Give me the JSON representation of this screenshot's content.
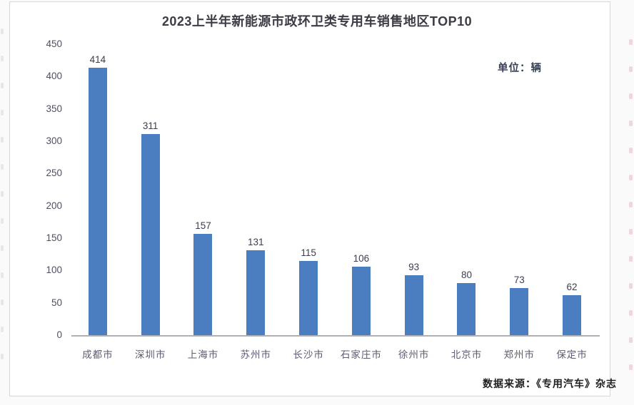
{
  "title": "2023上半年新能源市政环卫类专用车销售地区TOP10",
  "unit_label": "单位：辆",
  "source": "数据来源：《专用汽车》杂志",
  "colors": {
    "bar": "#4a7ec0",
    "axis_line": "#b0aeb6",
    "title_text": "#3c3c46",
    "y_tick_text": "#4f4f63",
    "value_label_text": "#3d3d52",
    "x_label_text": "#5c5c72",
    "unit_text": "#3a4257",
    "source_text": "#1f1f1f",
    "card_background": "#ffffff",
    "page_background": "#fbfafa"
  },
  "chart_data": {
    "type": "bar",
    "title": "2023上半年新能源市政环卫类专用车销售地区TOP10",
    "categories": [
      "成都市",
      "深圳市",
      "上海市",
      "苏州市",
      "长沙市",
      "石家庄市",
      "徐州市",
      "北京市",
      "郑州市",
      "保定市"
    ],
    "values": [
      414,
      311,
      157,
      131,
      115,
      106,
      93,
      80,
      73,
      62
    ],
    "xlabel": "",
    "ylabel": "",
    "unit": "辆",
    "ylim": [
      0,
      450
    ],
    "yticks": [
      0,
      50,
      100,
      150,
      200,
      250,
      300,
      350,
      400,
      450
    ],
    "grid": false,
    "legend": "none",
    "value_labels_shown": true
  }
}
